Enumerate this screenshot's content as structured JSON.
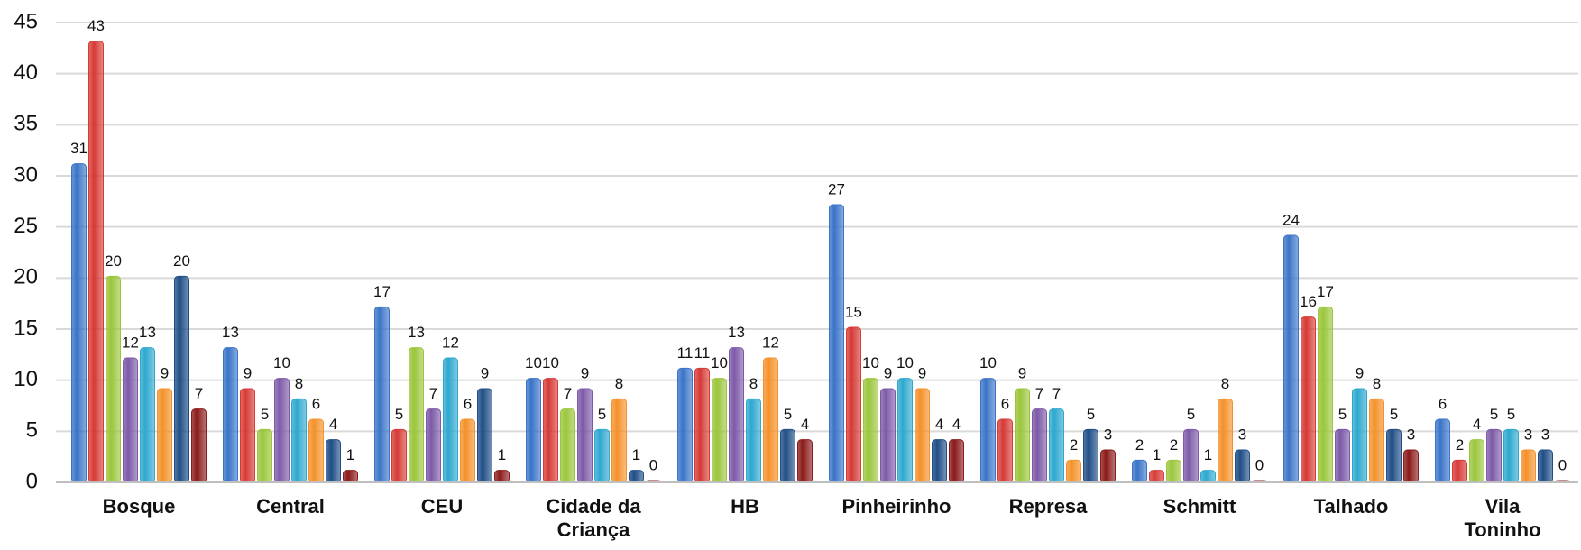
{
  "chart_data": {
    "type": "bar",
    "categories": [
      "Bosque",
      "Central",
      "CEU",
      "Cidade da Criança",
      "HB",
      "Pinheirinho",
      "Represa",
      "Schmitt",
      "Talhado",
      "Vila Toninho"
    ],
    "series": [
      {
        "color": "#3a74c8",
        "values": [
          31,
          13,
          17,
          10,
          11,
          27,
          10,
          2,
          24,
          6
        ]
      },
      {
        "color": "#d63a35",
        "values": [
          43,
          9,
          5,
          10,
          11,
          15,
          6,
          1,
          16,
          2
        ]
      },
      {
        "color": "#9bc63c",
        "values": [
          20,
          5,
          13,
          7,
          10,
          10,
          9,
          2,
          17,
          4
        ]
      },
      {
        "color": "#7d5aa8",
        "values": [
          12,
          10,
          7,
          9,
          13,
          9,
          7,
          5,
          5,
          5
        ]
      },
      {
        "color": "#2ea8cf",
        "values": [
          13,
          8,
          12,
          5,
          8,
          10,
          7,
          1,
          9,
          5
        ]
      },
      {
        "color": "#f4912a",
        "values": [
          9,
          6,
          6,
          8,
          12,
          9,
          2,
          8,
          8,
          3
        ]
      },
      {
        "color": "#1f4e86",
        "values": [
          20,
          4,
          9,
          1,
          5,
          4,
          5,
          3,
          5,
          3
        ]
      },
      {
        "color": "#8b1a1a",
        "values": [
          7,
          1,
          1,
          0,
          4,
          4,
          3,
          0,
          3,
          0
        ]
      }
    ],
    "ylim": [
      0,
      45
    ],
    "yticks": [
      0,
      5,
      10,
      15,
      20,
      25,
      30,
      35,
      40,
      45
    ],
    "grid": true
  }
}
